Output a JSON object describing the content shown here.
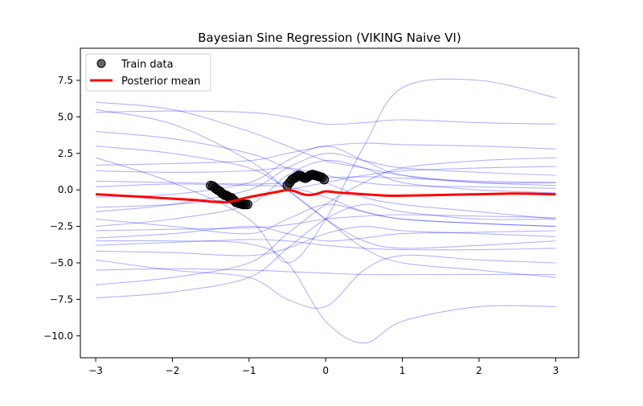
{
  "chart_data": {
    "type": "line",
    "title": "Bayesian Sine Regression (VIKING Naive VI)",
    "xlabel": "",
    "ylabel": "",
    "xlim": [
      -3.2,
      3.3
    ],
    "ylim": [
      -11.5,
      9.7
    ],
    "x_ticks": [
      -3,
      -2,
      -1,
      0,
      1,
      2,
      3
    ],
    "x_tick_labels": [
      "−3",
      "−2",
      "−1",
      "0",
      "1",
      "2",
      "3"
    ],
    "y_ticks": [
      -10,
      -7.5,
      -5,
      -2.5,
      0,
      2.5,
      5,
      7.5
    ],
    "y_tick_labels": [
      "−10.0",
      "−7.5",
      "−5.0",
      "−2.5",
      "0.0",
      "2.5",
      "5.0",
      "7.5"
    ],
    "grid": false,
    "legend": {
      "position": "top-left",
      "entries": [
        {
          "label": "Train data",
          "marker": "circle",
          "color": "#000000"
        },
        {
          "label": "Posterior mean",
          "marker": "line",
          "color": "#ff0000"
        }
      ]
    },
    "colors": {
      "samples": "#0000ff",
      "mean": "#ff0000",
      "train": "#000000"
    },
    "series": [
      {
        "name": "Posterior mean",
        "x": [
          -3,
          -2.5,
          -2,
          -1.7,
          -1.5,
          -1.3,
          -1.2,
          -1,
          -0.8,
          -0.6,
          -0.5,
          -0.4,
          -0.3,
          -0.2,
          -0.1,
          0,
          0.2,
          0.5,
          0.8,
          1,
          1.5,
          2,
          2.5,
          3
        ],
        "y": [
          -0.3,
          -0.45,
          -0.6,
          -0.7,
          -0.8,
          -0.85,
          -0.75,
          -0.5,
          -0.3,
          -0.1,
          0,
          -0.1,
          -0.3,
          -0.35,
          -0.25,
          -0.1,
          -0.2,
          -0.3,
          -0.4,
          -0.4,
          -0.35,
          -0.3,
          -0.25,
          -0.3
        ]
      },
      {
        "name": "Train data",
        "type": "scatter",
        "x": [
          -1.5,
          -1.47,
          -1.44,
          -1.41,
          -1.38,
          -1.35,
          -1.32,
          -1.29,
          -1.26,
          -1.23,
          -1.2,
          -1.17,
          -1.14,
          -1.11,
          -1.08,
          -1.05,
          -1.02,
          -0.5,
          -0.47,
          -0.44,
          -0.41,
          -0.38,
          -0.35,
          -0.32,
          -0.29,
          -0.26,
          -0.23,
          -0.2,
          -0.17,
          -0.14,
          -0.11,
          -0.08,
          -0.05,
          -0.02
        ],
        "y": [
          0.3,
          0.25,
          0.1,
          0.0,
          -0.1,
          -0.25,
          -0.35,
          -0.4,
          -0.5,
          -0.55,
          -0.7,
          -0.85,
          -0.9,
          -0.95,
          -1.0,
          -1.0,
          -1.0,
          0.3,
          0.5,
          0.7,
          0.8,
          0.9,
          1.0,
          0.95,
          0.85,
          0.8,
          0.9,
          1.0,
          1.05,
          1.0,
          0.95,
          0.9,
          0.85,
          0.7
        ]
      }
    ],
    "samples": [
      {
        "x": [
          -3,
          -2,
          -1,
          -0.5,
          0,
          0.5,
          1,
          2,
          3
        ],
        "y": [
          6.0,
          5.5,
          4.0,
          3.0,
          2.0,
          1.5,
          1.0,
          0.5,
          0.3
        ]
      },
      {
        "x": [
          -3,
          -2,
          -1,
          -0.5,
          0,
          0.5,
          1,
          2,
          3
        ],
        "y": [
          5.5,
          4.5,
          2.0,
          0.0,
          -2.0,
          -3.5,
          -4.0,
          -3.8,
          -3.5
        ]
      },
      {
        "x": [
          -3,
          -2,
          -1,
          -0.5,
          0,
          0.5,
          1,
          2,
          3
        ],
        "y": [
          5.3,
          5.4,
          5.3,
          5.0,
          4.5,
          4.6,
          4.8,
          4.6,
          4.5
        ]
      },
      {
        "x": [
          -3,
          -2,
          -1,
          -0.5,
          0,
          0.5,
          1,
          2,
          3
        ],
        "y": [
          2.2,
          0.5,
          -2.0,
          -5.0,
          -2.0,
          3.0,
          7.0,
          7.5,
          6.3
        ]
      },
      {
        "x": [
          -3,
          -2,
          -1,
          -0.5,
          0,
          0.5,
          1,
          2,
          3
        ],
        "y": [
          1.7,
          1.8,
          2.0,
          2.5,
          3.0,
          3.2,
          3.1,
          3.0,
          2.8
        ]
      },
      {
        "x": [
          -3,
          -2,
          -1,
          -0.5,
          0,
          0.5,
          1,
          2,
          3
        ],
        "y": [
          1.3,
          1.2,
          1.3,
          1.5,
          1.0,
          0.5,
          0.3,
          0.2,
          0.1
        ]
      },
      {
        "x": [
          -3,
          -2,
          -1,
          -0.5,
          0,
          0.5,
          1,
          2,
          3
        ],
        "y": [
          0.6,
          0.5,
          0.4,
          0.5,
          0.8,
          0.9,
          0.8,
          0.6,
          0.5
        ]
      },
      {
        "x": [
          -3,
          -2,
          -1,
          -0.5,
          0,
          0.5,
          1,
          2,
          3
        ],
        "y": [
          0.2,
          0.4,
          0.3,
          0.2,
          -0.5,
          -1.5,
          -2.0,
          -2.3,
          -2.5
        ]
      },
      {
        "x": [
          -3,
          -2,
          -1,
          -0.5,
          0,
          0.5,
          1,
          2,
          3
        ],
        "y": [
          -0.5,
          -0.3,
          0.5,
          2.0,
          3.0,
          2.0,
          1.0,
          0.5,
          0.5
        ]
      },
      {
        "x": [
          -3,
          -2,
          -1,
          -0.5,
          0,
          0.5,
          1,
          2,
          3
        ],
        "y": [
          -1.2,
          -1.0,
          -0.5,
          0.0,
          0.5,
          1.0,
          1.3,
          1.5,
          1.6
        ]
      },
      {
        "x": [
          -3,
          -2,
          -1,
          -0.5,
          0,
          0.5,
          1,
          2,
          3
        ],
        "y": [
          -2.0,
          -2.5,
          -3.0,
          -2.0,
          -1.0,
          -1.5,
          -2.0,
          -2.3,
          -2.5
        ]
      },
      {
        "x": [
          -3,
          -2,
          -1,
          -0.5,
          0,
          0.5,
          1,
          2,
          3
        ],
        "y": [
          -2.8,
          -2.7,
          -2.6,
          -2.4,
          -2.0,
          -1.8,
          -1.7,
          -1.8,
          -1.9
        ]
      },
      {
        "x": [
          -3,
          -2,
          -1,
          -0.5,
          0,
          0.5,
          1,
          2,
          3
        ],
        "y": [
          -3.3,
          -3.0,
          -2.5,
          -3.0,
          -3.5,
          -3.3,
          -3.0,
          -2.9,
          -2.8
        ]
      },
      {
        "x": [
          -3,
          -2,
          -1,
          -0.5,
          0,
          0.5,
          1,
          2,
          3
        ],
        "y": [
          -3.8,
          -3.6,
          -3.4,
          -3.5,
          -3.8,
          -4.0,
          -4.1,
          -4.1,
          -4.0
        ]
      },
      {
        "x": [
          -3,
          -2,
          -1,
          -0.5,
          0,
          0.5,
          1,
          2,
          3
        ],
        "y": [
          -4.2,
          -4.3,
          -4.5,
          -4.0,
          -3.0,
          -2.5,
          -2.8,
          -3.0,
          -3.2
        ]
      },
      {
        "x": [
          -3,
          -2,
          -1,
          -0.5,
          0,
          0.5,
          1,
          2,
          3
        ],
        "y": [
          -4.8,
          -5.5,
          -6.0,
          -7.5,
          -8.0,
          -5.5,
          -4.5,
          -4.8,
          -5.0
        ]
      },
      {
        "x": [
          -3,
          -2,
          -1,
          -0.5,
          0,
          0.5,
          1,
          2,
          3
        ],
        "y": [
          -5.5,
          -5.4,
          -5.5,
          -5.6,
          -5.7,
          -5.8,
          -5.8,
          -5.8,
          -5.8
        ]
      },
      {
        "x": [
          -3,
          -2,
          -1,
          -0.5,
          0,
          0.5,
          1,
          2,
          3
        ],
        "y": [
          -7.4,
          -7.0,
          -6.0,
          -4.0,
          -2.0,
          -1.0,
          -1.5,
          -2.0,
          -2.0
        ]
      },
      {
        "x": [
          -3,
          -2,
          -1,
          -0.5,
          0,
          0.5,
          1,
          2,
          3
        ],
        "y": [
          -3.5,
          -3.5,
          -3.7,
          -5.0,
          -9.0,
          -10.5,
          -9.0,
          -8.0,
          -8.0
        ]
      },
      {
        "x": [
          -3,
          -2,
          -1,
          -0.5,
          0,
          0.5,
          1,
          2,
          3
        ],
        "y": [
          3.0,
          2.5,
          1.5,
          0.0,
          -2.0,
          -4.0,
          -5.0,
          -5.5,
          -6.0
        ]
      },
      {
        "x": [
          -3,
          -2,
          -1,
          -0.5,
          0,
          0.5,
          1,
          2,
          3
        ],
        "y": [
          -1.5,
          -1.0,
          0.0,
          1.5,
          2.5,
          2.0,
          1.5,
          1.2,
          1.0
        ]
      },
      {
        "x": [
          -3,
          -2,
          -1,
          -0.5,
          0,
          0.5,
          1,
          2,
          3
        ],
        "y": [
          -2.5,
          -2.0,
          -1.0,
          1.0,
          2.0,
          1.5,
          0.5,
          0.0,
          -0.2
        ]
      },
      {
        "x": [
          -3,
          -2,
          -1,
          -0.5,
          0,
          0.5,
          1,
          2,
          3
        ],
        "y": [
          4.0,
          3.5,
          2.5,
          1.5,
          0.5,
          -0.5,
          -1.0,
          -1.5,
          -2.0
        ]
      },
      {
        "x": [
          -3,
          -2,
          -1,
          -0.5,
          0,
          0.5,
          1,
          2,
          3
        ],
        "y": [
          -6.5,
          -6.0,
          -5.0,
          -3.0,
          -1.0,
          0.5,
          1.5,
          2.0,
          2.2
        ]
      }
    ]
  }
}
